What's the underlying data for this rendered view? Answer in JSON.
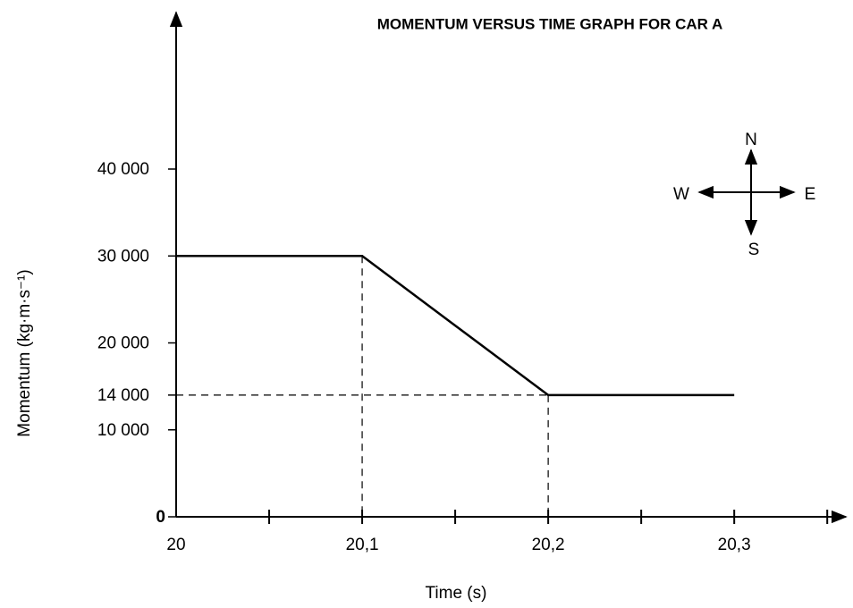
{
  "chart_data": {
    "type": "line",
    "title": "MOMENTUM VERSUS TIME GRAPH FOR CAR A",
    "xlabel": "Time (s)",
    "ylabel": "Momentum (kg·m·s⁻¹)",
    "x": [
      20,
      20.1,
      20.2,
      20.3
    ],
    "values": [
      30000,
      30000,
      14000,
      14000
    ],
    "color": "#000000",
    "xlim": [
      20,
      20.36
    ],
    "ylim": [
      0,
      58000
    ],
    "xticks": [
      20,
      {
        "value": 20.1,
        "label": "20,1"
      },
      {
        "value": 20.2,
        "label": "20,2"
      },
      {
        "value": 20.3,
        "label": "20,3"
      }
    ],
    "xminorticks": [
      20.05,
      20.15,
      20.25,
      20.35
    ],
    "yticks": [
      0,
      {
        "value": 10000,
        "label": "10 000"
      },
      {
        "value": 14000,
        "label": "14 000"
      },
      {
        "value": 20000,
        "label": "20 000"
      },
      {
        "value": 30000,
        "label": "30 000"
      },
      {
        "value": 40000,
        "label": "40 000"
      }
    ],
    "compass": {
      "north": "N",
      "south": "S",
      "east": "E",
      "west": "W"
    }
  }
}
